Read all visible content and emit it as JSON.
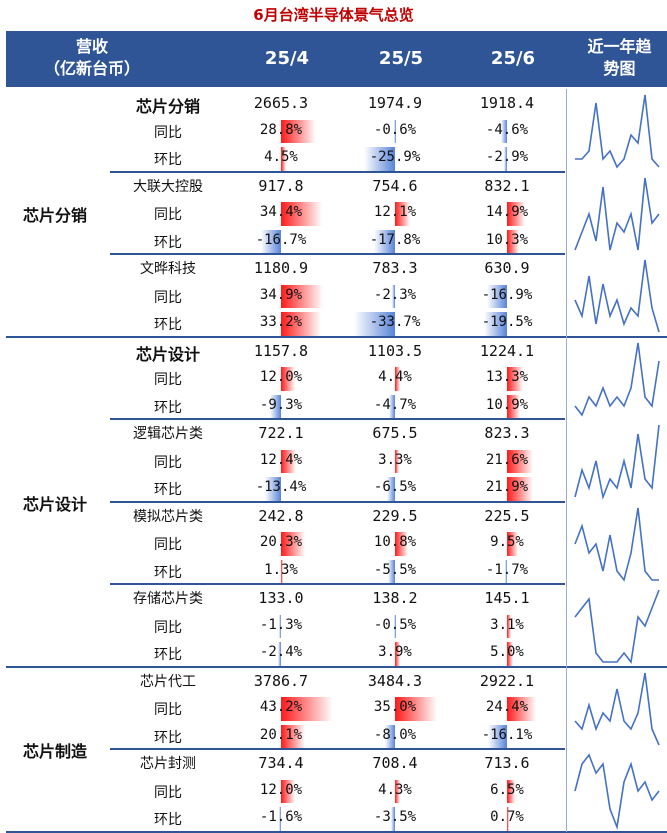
{
  "title": "6月台湾半导体景气总览",
  "header": {
    "revenue_line1": "营收",
    "revenue_line2": "（亿新台币）",
    "months": [
      "25/4",
      "25/5",
      "25/6"
    ],
    "trend_line1": "近一年趋",
    "trend_line2": "势图"
  },
  "colors": {
    "header_bg": "#2f5597",
    "title": "#c00000",
    "positive": "#ff0000",
    "negative": "#3b6ed2",
    "sparkline": "#4472c4"
  },
  "chart_data": {
    "type": "table",
    "title": "6月台湾半导体景气总览",
    "columns": [
      "25/4",
      "25/5",
      "25/6"
    ],
    "row_labels": {
      "yoy": "同比",
      "mom": "环比"
    },
    "sections": [
      {
        "name": "芯片分销",
        "groups": [
          {
            "name": "芯片分销",
            "main": true,
            "revenue": [
              "2665.3",
              "1974.9",
              "1918.4"
            ],
            "yoy": [
              "28.8%",
              "-0.6%",
              "-4.6%"
            ],
            "mom": [
              "4.5%",
              "-25.9%",
              "-2.9%"
            ],
            "yoy_values": [
              28.8,
              -0.6,
              -4.6
            ],
            "mom_values": [
              4.5,
              -25.9,
              -2.9
            ],
            "trend": [
              2,
              2,
              3,
              9,
              2,
              3,
              1,
              2,
              5,
              4,
              10,
              2,
              1
            ]
          },
          {
            "name": "大联大控股",
            "main": false,
            "revenue": [
              "917.8",
              "754.6",
              "832.1"
            ],
            "yoy": [
              "34.4%",
              "12.1%",
              "14.9%"
            ],
            "mom": [
              "-16.7%",
              "-17.8%",
              "10.3%"
            ],
            "yoy_values": [
              34.4,
              12.1,
              14.9
            ],
            "mom_values": [
              -16.7,
              -17.8,
              10.3
            ],
            "trend": [
              2,
              4,
              6,
              3,
              9,
              2,
              5,
              4,
              6,
              2,
              10,
              5,
              6
            ]
          },
          {
            "name": "文晔科技",
            "main": false,
            "revenue": [
              "1180.9",
              "783.3",
              "630.9"
            ],
            "yoy": [
              "34.9%",
              "-2.3%",
              "-16.9%"
            ],
            "mom": [
              "33.2%",
              "-33.7%",
              "-19.5%"
            ],
            "yoy_values": [
              34.9,
              -2.3,
              -16.9
            ],
            "mom_values": [
              33.2,
              -33.7,
              -19.5
            ],
            "trend": [
              5,
              3,
              8,
              2,
              7,
              3,
              5,
              2,
              4,
              3,
              10,
              4,
              1
            ]
          }
        ]
      },
      {
        "name": "芯片设计",
        "groups": [
          {
            "name": "芯片设计",
            "main": true,
            "revenue": [
              "1157.8",
              "1103.5",
              "1224.1"
            ],
            "yoy": [
              "12.0%",
              "4.4%",
              "13.3%"
            ],
            "mom": [
              "-9.3%",
              "-4.7%",
              "10.9%"
            ],
            "yoy_values": [
              12.0,
              4.4,
              13.3
            ],
            "mom_values": [
              -9.3,
              -4.7,
              10.9
            ],
            "trend": [
              3,
              2,
              4,
              3,
              5,
              3,
              4,
              3,
              5,
              10,
              4,
              3,
              8
            ]
          },
          {
            "name": "逻辑芯片类",
            "main": false,
            "revenue": [
              "722.1",
              "675.5",
              "823.3"
            ],
            "yoy": [
              "12.4%",
              "3.3%",
              "21.6%"
            ],
            "mom": [
              "-13.4%",
              "-6.5%",
              "21.9%"
            ],
            "yoy_values": [
              12.4,
              3.3,
              21.6
            ],
            "mom_values": [
              -13.4,
              -6.5,
              21.9
            ],
            "trend": [
              2,
              5,
              3,
              6,
              2,
              4,
              3,
              6,
              3,
              9,
              4,
              3,
              10
            ]
          },
          {
            "name": "模拟芯片类",
            "main": false,
            "revenue": [
              "242.8",
              "229.5",
              "225.5"
            ],
            "yoy": [
              "20.3%",
              "10.8%",
              "9.5%"
            ],
            "mom": [
              "1.3%",
              "-5.5%",
              "-1.7%"
            ],
            "yoy_values": [
              20.3,
              10.8,
              9.5
            ],
            "mom_values": [
              1.3,
              -5.5,
              -1.7
            ],
            "trend": [
              6,
              8,
              5,
              6,
              3,
              7,
              3,
              2,
              5,
              10,
              3,
              2,
              2
            ]
          },
          {
            "name": "存储芯片类",
            "main": false,
            "revenue": [
              "133.0",
              "138.2",
              "145.1"
            ],
            "yoy": [
              "-1.3%",
              "-0.5%",
              "3.1%"
            ],
            "mom": [
              "-2.4%",
              "3.9%",
              "5.0%"
            ],
            "yoy_values": [
              -1.3,
              -0.5,
              3.1
            ],
            "mom_values": [
              -2.4,
              3.9,
              5.0
            ],
            "trend": [
              7,
              8,
              9,
              3,
              2,
              2,
              2,
              3,
              2,
              7,
              6,
              8,
              10
            ]
          }
        ]
      },
      {
        "name": "芯片制造",
        "groups": [
          {
            "name": "芯片代工",
            "main": false,
            "revenue": [
              "3786.7",
              "3484.3",
              "2922.1"
            ],
            "yoy": [
              "43.2%",
              "35.0%",
              "24.4%"
            ],
            "mom": [
              "20.1%",
              "-8.0%",
              "-16.1%"
            ],
            "yoy_values": [
              43.2,
              35.0,
              24.4
            ],
            "mom_values": [
              20.1,
              -8.0,
              -16.1
            ],
            "trend": [
              4,
              3,
              6,
              3,
              5,
              4,
              8,
              4,
              3,
              5,
              10,
              3,
              1
            ]
          },
          {
            "name": "芯片封测",
            "main": false,
            "revenue": [
              "734.4",
              "708.4",
              "713.6"
            ],
            "yoy": [
              "12.0%",
              "4.3%",
              "6.5%"
            ],
            "mom": [
              "-1.6%",
              "-3.5%",
              "0.7%"
            ],
            "yoy_values": [
              12.0,
              4.3,
              6.5
            ],
            "mom_values": [
              -1.6,
              -3.5,
              0.7
            ],
            "trend": [
              5,
              8,
              9,
              7,
              8,
              3,
              1,
              6,
              8,
              5,
              6,
              4,
              5
            ]
          }
        ]
      }
    ]
  }
}
